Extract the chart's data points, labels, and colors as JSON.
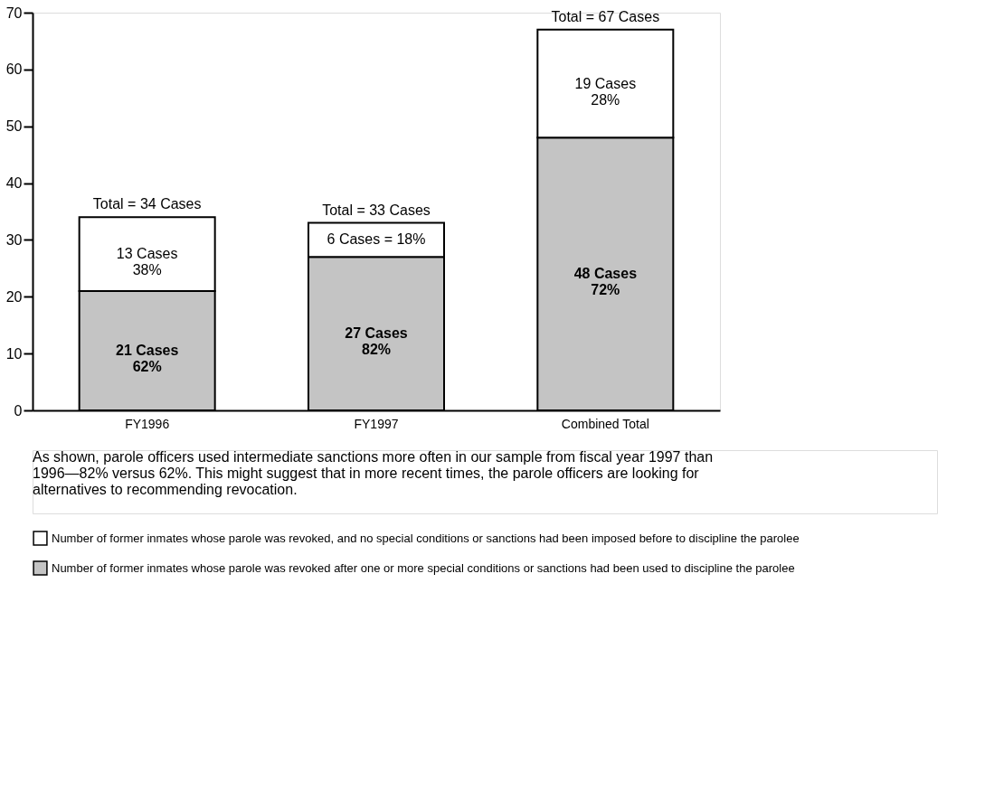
{
  "chart_data": {
    "type": "bar",
    "stacked": true,
    "categories": [
      "FY1996",
      "FY1997",
      "Combined Total"
    ],
    "series": [
      {
        "name": "Number of former inmates whose parole was revoked after one or more special conditions or sanctions had been used to discipline the parolee",
        "color": "#c4c4c4",
        "values": [
          21,
          27,
          48
        ],
        "value_labels": [
          "21 Cases\n62%",
          "27 Cases\n82%",
          "48 Cases\n72%"
        ]
      },
      {
        "name": "Number of former inmates whose parole was revoked, and no special conditions or sanctions had been imposed before to discipline the parolee",
        "color": "#ffffff",
        "values": [
          13,
          6,
          19
        ],
        "value_labels": [
          "13 Cases\n38%",
          "6 Cases = 18%",
          "19 Cases\n28%"
        ]
      }
    ],
    "totals": [
      "Total = 34 Cases",
      "Total = 33 Cases",
      "Total = 67 Cases"
    ],
    "ylim": [
      0,
      70
    ],
    "yticks": [
      0,
      10,
      20,
      30,
      40,
      50,
      60,
      70
    ],
    "grid": false,
    "legend": "bottom",
    "annotations": [
      "As shown, parole officers used intermediate sanctions more often in our sample from fiscal year 1997 than 1996—82% versus 62%. This might suggest that in more recent times, the parole officers are looking for alternatives to recommending revocation."
    ]
  }
}
